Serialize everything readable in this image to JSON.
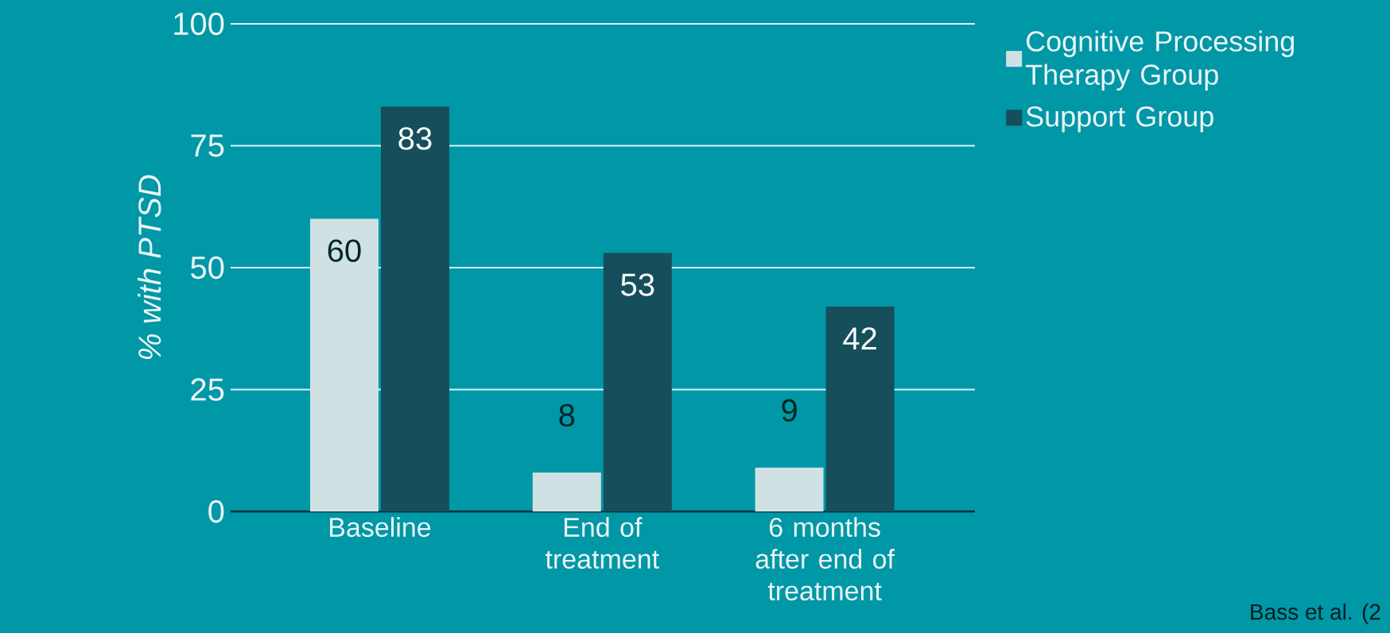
{
  "chart_data": {
    "type": "bar",
    "ylabel": "% with PTSD",
    "categories": [
      "Baseline",
      "End of treatment",
      "6 months after end of treatment"
    ],
    "series": [
      {
        "name": "Cognitive Processing Therapy Group",
        "color": "#d0e1e4",
        "values": [
          60,
          8,
          9
        ]
      },
      {
        "name": "Support Group",
        "color": "#164e5c",
        "values": [
          83,
          53,
          42
        ]
      }
    ],
    "ylim": [
      0,
      100
    ],
    "yticks": [
      0,
      25,
      50,
      75,
      100
    ],
    "grid": "y",
    "legend": "right",
    "data_labels": true,
    "annotations": [
      "Bass et al. (2"
    ]
  }
}
